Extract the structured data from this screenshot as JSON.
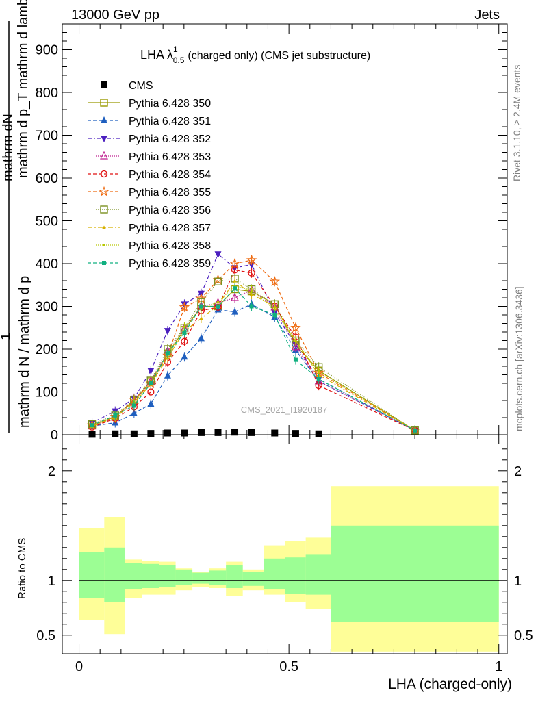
{
  "header": {
    "left": "13000 GeV pp",
    "right": "Jets",
    "rivet": "Rivet 3.1.10, ≥ 2.4M events",
    "mcplots": "mcplots.cern.ch [arXiv:1306.3436]",
    "watermark": "CMS_2021_I1920187"
  },
  "chart_data": [
    {
      "type": "line",
      "title": "LHA λ",
      "title_sup": "1",
      "title_sub": "0.5",
      "title_rest": "(charged only) (CMS jet substructure)",
      "ylabel_num": "mathrm dN",
      "ylabel_den": "mathrm d p_T mathrm d lambda",
      "ylabel_num_sub": "T",
      "ylabel_prefix_top": "1",
      "ylabel_prefix_bottom": "mathrm d N / mathrm d p",
      "ylabel_prefix_bottom_sub": "T",
      "xlim": [
        -0.04,
        1.02
      ],
      "ylim": [
        0,
        960
      ],
      "yticks": [
        0,
        100,
        200,
        300,
        400,
        500,
        600,
        700,
        800,
        900
      ],
      "x": [
        0.031,
        0.086,
        0.131,
        0.171,
        0.211,
        0.251,
        0.291,
        0.331,
        0.371,
        0.411,
        0.466,
        0.516,
        0.571,
        0.8
      ],
      "cms": [
        1,
        2,
        2,
        3,
        4,
        4,
        5,
        5,
        6,
        5,
        4,
        3,
        2,
        null
      ],
      "series": [
        {
          "name": "Pythia 6.428 350",
          "color": "#999900",
          "dash": "",
          "marker": "square-open",
          "values": [
            22,
            42,
            80,
            125,
            190,
            245,
            300,
            300,
            340,
            335,
            305,
            210,
            150,
            10
          ]
        },
        {
          "name": "Pythia 6.428 351",
          "color": "#1f5fbf",
          "dash": "5,3",
          "marker": "triangle-up",
          "values": [
            20,
            28,
            50,
            72,
            138,
            182,
            225,
            292,
            287,
            305,
            275,
            198,
            125,
            10
          ]
        },
        {
          "name": "Pythia 6.428 352",
          "color": "#4b1fbf",
          "dash": "6,3,2,3",
          "marker": "triangle-down",
          "values": [
            28,
            55,
            85,
            150,
            243,
            305,
            330,
            422,
            390,
            398,
            285,
            210,
            130,
            10
          ]
        },
        {
          "name": "Pythia 6.428 353",
          "color": "#bf1f8f",
          "dash": "1,2",
          "marker": "triangle-open",
          "values": [
            20,
            40,
            78,
            125,
            195,
            248,
            300,
            308,
            320,
            338,
            298,
            205,
            125,
            10
          ]
        },
        {
          "name": "Pythia 6.428 354",
          "color": "#e01010",
          "dash": "5,3",
          "marker": "circle-open",
          "values": [
            18,
            38,
            65,
            100,
            170,
            218,
            290,
            298,
            385,
            378,
            300,
            228,
            115,
            10
          ]
        },
        {
          "name": "Pythia 6.428 355",
          "color": "#ee6a10",
          "dash": "5,3",
          "marker": "star-open",
          "values": [
            22,
            42,
            82,
            120,
            185,
            298,
            318,
            362,
            400,
            408,
            358,
            250,
            145,
            10
          ]
        },
        {
          "name": "Pythia 6.428 356",
          "color": "#7a9020",
          "dash": "1,2",
          "marker": "square-open",
          "values": [
            25,
            45,
            82,
            128,
            200,
            250,
            310,
            358,
            365,
            340,
            305,
            220,
            158,
            10
          ]
        },
        {
          "name": "Pythia 6.428 357",
          "color": "#d6b000",
          "dash": "7,3,2,3",
          "marker": "tri-small",
          "values": [
            20,
            40,
            75,
            118,
            180,
            242,
            272,
            302,
            360,
            328,
            300,
            220,
            140,
            10
          ]
        },
        {
          "name": "Pythia 6.428 358",
          "color": "#b6c800",
          "dash": "1,2",
          "marker": "dot",
          "values": [
            22,
            42,
            78,
            120,
            188,
            252,
            295,
            310,
            348,
            338,
            292,
            218,
            148,
            10
          ]
        },
        {
          "name": "Pythia 6.428 359",
          "color": "#10b080",
          "dash": "5,3",
          "marker": "square-filled",
          "values": [
            22,
            45,
            68,
            120,
            190,
            238,
            300,
            300,
            342,
            300,
            280,
            175,
            130,
            10
          ]
        }
      ]
    },
    {
      "type": "area",
      "ylabel": "Ratio to CMS",
      "xlabel": "LHA (charged-only)",
      "xlim": [
        -0.04,
        1.02
      ],
      "ylim": [
        0.33,
        2.33
      ],
      "yticks": [
        0.5,
        1,
        2
      ],
      "xticks": [
        0,
        0.5,
        1
      ],
      "bins": [
        0,
        0.06,
        0.11,
        0.15,
        0.19,
        0.23,
        0.27,
        0.31,
        0.35,
        0.39,
        0.44,
        0.49,
        0.54,
        0.6,
        1.0
      ],
      "green_upper": [
        1.26,
        1.3,
        1.16,
        1.15,
        1.14,
        1.1,
        1.07,
        1.09,
        1.14,
        1.08,
        1.2,
        1.21,
        1.24,
        1.5
      ],
      "green_lower": [
        0.84,
        0.8,
        0.92,
        0.93,
        0.94,
        0.96,
        0.97,
        0.96,
        0.93,
        0.95,
        0.92,
        0.88,
        0.87,
        0.62
      ],
      "yellow_upper": [
        1.48,
        1.58,
        1.19,
        1.18,
        1.17,
        1.11,
        1.08,
        1.11,
        1.17,
        1.1,
        1.32,
        1.36,
        1.39,
        1.86
      ],
      "yellow_lower": [
        0.64,
        0.51,
        0.84,
        0.87,
        0.87,
        0.91,
        0.94,
        0.93,
        0.86,
        0.91,
        0.87,
        0.8,
        0.74,
        0.35
      ],
      "colors": {
        "green": "#9cfe94",
        "yellow": "#fefe98"
      }
    }
  ]
}
